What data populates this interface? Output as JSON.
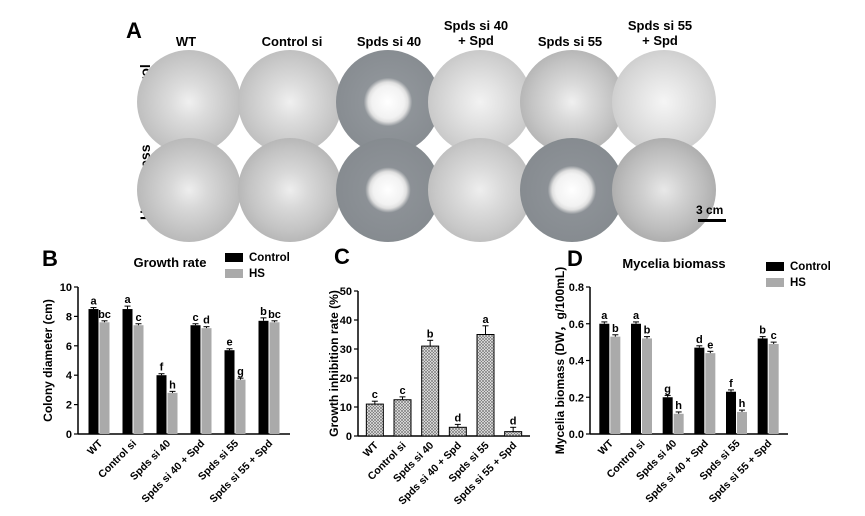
{
  "panelA": {
    "letter": "A",
    "columns": [
      "WT",
      "Control si",
      "Spds si 40",
      "Spds si 40\n+ Spd",
      "Spds si 55",
      "Spds si 55\n+ Spd"
    ],
    "rows": [
      "Control",
      "Heat stress"
    ],
    "scale_bar_label": "3 cm"
  },
  "colors": {
    "control": "#000000",
    "hs": "#aaaaaa",
    "hatch": "#777777"
  },
  "chart_data": [
    {
      "letter": "B",
      "type": "bar",
      "title": "Growth rate",
      "ylabel": "Colony diameter (cm)",
      "xlabel": "",
      "ylim": [
        0,
        10
      ],
      "yticks": [
        0,
        2,
        4,
        6,
        8,
        10
      ],
      "categories": [
        "WT",
        "Control si",
        "Spds si 40",
        "Spds si 40 + Spd",
        "Spds si 55",
        "Spds si 55 + Spd"
      ],
      "legend": [
        "Control",
        "HS"
      ],
      "legend_position": "top-right",
      "series": [
        {
          "name": "Control",
          "values": [
            8.5,
            8.5,
            4.0,
            7.4,
            5.7,
            7.7
          ],
          "err": [
            0.1,
            0.2,
            0.1,
            0.1,
            0.1,
            0.2
          ],
          "letters": [
            "a",
            "a",
            "f",
            "c",
            "e",
            "b"
          ]
        },
        {
          "name": "HS",
          "values": [
            7.6,
            7.4,
            2.8,
            7.2,
            3.7,
            7.6
          ],
          "err": [
            0.1,
            0.1,
            0.1,
            0.1,
            0.1,
            0.1
          ],
          "letters": [
            "bc",
            "c",
            "h",
            "d",
            "g",
            "bc"
          ]
        }
      ]
    },
    {
      "letter": "C",
      "type": "bar",
      "title": "",
      "ylabel": "Growth inhibition rate (%)",
      "xlabel": "",
      "ylim": [
        0,
        50
      ],
      "yticks": [
        0,
        10,
        20,
        30,
        40,
        50
      ],
      "categories": [
        "WT",
        "Control si",
        "Spds si 40",
        "Spds si 40 + Spd",
        "Spds si 55",
        "Spds si 55 + Spd"
      ],
      "series": [
        {
          "name": "",
          "values": [
            11,
            12.5,
            31,
            3,
            35,
            1.5
          ],
          "err": [
            1,
            1,
            2,
            1,
            3,
            1.5
          ],
          "letters": [
            "c",
            "c",
            "b",
            "d",
            "a",
            "d"
          ]
        }
      ]
    },
    {
      "letter": "D",
      "type": "bar",
      "title": "Mycelia biomass",
      "ylabel": "Mycelia biomass (DW，g/100mL)",
      "xlabel": "",
      "ylim": [
        0,
        0.8
      ],
      "yticks": [
        0.0,
        0.2,
        0.4,
        0.6,
        0.8
      ],
      "categories": [
        "WT",
        "Control si",
        "Spds si 40",
        "Spds si 40 + Spd",
        "Spds si 55",
        "Spds si 55 + Spd"
      ],
      "legend": [
        "Control",
        "HS"
      ],
      "legend_position": "top-right",
      "series": [
        {
          "name": "Control",
          "values": [
            0.6,
            0.6,
            0.2,
            0.47,
            0.23,
            0.52
          ],
          "err": [
            0.01,
            0.01,
            0.01,
            0.01,
            0.01,
            0.01
          ],
          "letters": [
            "a",
            "a",
            "g",
            "d",
            "f",
            "b"
          ]
        },
        {
          "name": "HS",
          "values": [
            0.53,
            0.52,
            0.11,
            0.44,
            0.12,
            0.49
          ],
          "err": [
            0.01,
            0.01,
            0.01,
            0.01,
            0.01,
            0.01
          ],
          "letters": [
            "b",
            "b",
            "h",
            "e",
            "h",
            "c"
          ]
        }
      ]
    }
  ]
}
